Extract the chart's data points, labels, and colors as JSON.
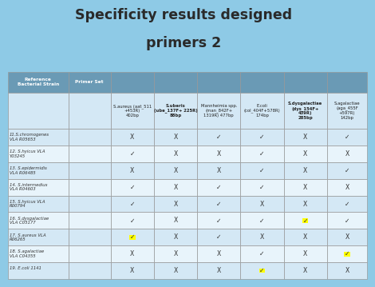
{
  "title_line1": "Specificity results designed",
  "title_line2": "primers 2",
  "bg_color": "#8ecae6",
  "table_border": "#aaaaaa",
  "header1_bg": "#6a9ab5",
  "header1_text": "#ffffff",
  "header2_bg": "#d4e8f5",
  "header2_text": "#222222",
  "col1_bg": "#6a9ab5",
  "col1_text": "#ffffff",
  "row_odd_bg": "#d4e8f5",
  "row_even_bg": "#e8f4fb",
  "data_text": "#333333",
  "highlight_color": "#ffff00",
  "col_headers_top": [
    "Reference\nBacterial Strain",
    "Primer Set"
  ],
  "col_headers_sub": [
    "S.aureus (aat_511\n+453R)\n402bp",
    "S.uberis\n(ube_137F+ 225R)\n88bp",
    "Mannheimia spp.\n(man_842F+\n1319R) 477bp",
    "E.coli\n(col_404F+578R)\n174bp",
    "S.dysgalactiae\n(dys_154F+\n439R)\n285bp",
    "S.agalactiae\n(aga_455F\n+597R)\n142bp"
  ],
  "col_headers_sub_bold": [
    false,
    true,
    false,
    false,
    true,
    false
  ],
  "rows": [
    {
      "label1": "11.S.chromogenes",
      "label2": "VLA R05653",
      "values": [
        "X",
        "X",
        "✓",
        "✓",
        "X",
        "✓"
      ],
      "highlight": []
    },
    {
      "label1": "12. S.hyicus VLA",
      "label2": "Y03245",
      "values": [
        "✓",
        "X",
        "X",
        "✓",
        "X",
        "X"
      ],
      "highlight": []
    },
    {
      "label1": "13. S.epidermidis",
      "label2": "VLA R06485",
      "values": [
        "X",
        "X",
        "X",
        "✓",
        "X",
        "✓"
      ],
      "highlight": []
    },
    {
      "label1": "14. S.intermedius",
      "label2": "VLA R04603",
      "values": [
        "✓",
        "X",
        "✓",
        "✓",
        "X",
        "X"
      ],
      "highlight": []
    },
    {
      "label1": "15. S.hyicus VLA",
      "label2": "R00794",
      "values": [
        "✓",
        "X",
        "✓",
        "X",
        "X",
        "✓"
      ],
      "highlight": []
    },
    {
      "label1": "16. S.dysgalactiae",
      "label2": "VLA C05177",
      "values": [
        "✓",
        "X",
        "✓",
        "✓",
        "✓",
        "✓"
      ],
      "highlight": [
        4
      ]
    },
    {
      "label1": "17. S.aureus VLA",
      "label2": "R06265",
      "values": [
        "✓",
        "X",
        "✓",
        "X",
        "X",
        "X"
      ],
      "highlight": [
        0
      ]
    },
    {
      "label1": "18. S.agalactiae",
      "label2": "VLA C04355",
      "values": [
        "X",
        "X",
        "X",
        "✓",
        "X",
        "✓"
      ],
      "highlight": [
        5
      ]
    },
    {
      "label1": "19. E.coli 1141",
      "label2": "",
      "values": [
        "X",
        "X",
        "X",
        "✓",
        "X",
        "X"
      ],
      "highlight": [
        3
      ]
    }
  ]
}
